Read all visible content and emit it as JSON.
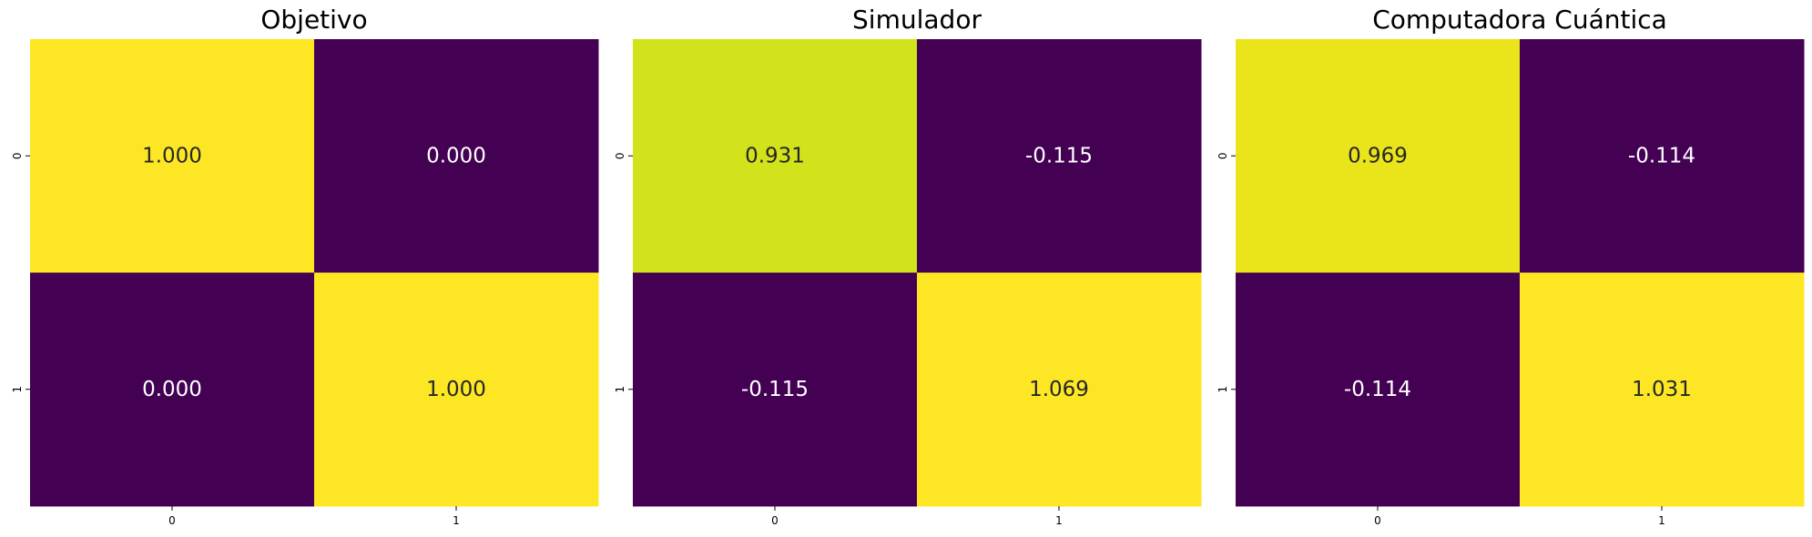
{
  "chart_data": [
    {
      "type": "heatmap",
      "title": "Objetivo",
      "x_tick_labels": [
        "0",
        "1"
      ],
      "y_tick_labels": [
        "0",
        "1"
      ],
      "values": [
        [
          1.0,
          0.0
        ],
        [
          0.0,
          1.0
        ]
      ],
      "cell_labels": [
        [
          "1.000",
          "0.000"
        ],
        [
          "0.000",
          "1.000"
        ]
      ],
      "colors": [
        [
          "#fde725",
          "#440154"
        ],
        [
          "#440154",
          "#fde725"
        ]
      ],
      "colormap": "viridis",
      "colorbar": false
    },
    {
      "type": "heatmap",
      "title": "Simulador",
      "x_tick_labels": [
        "0",
        "1"
      ],
      "y_tick_labels": [
        "0",
        "1"
      ],
      "values": [
        [
          0.931,
          -0.115
        ],
        [
          -0.115,
          1.069
        ]
      ],
      "cell_labels": [
        [
          "0.931",
          "-0.115"
        ],
        [
          "-0.115",
          "1.069"
        ]
      ],
      "colors": [
        [
          "#d2e21b",
          "#440154"
        ],
        [
          "#440154",
          "#fde725"
        ]
      ],
      "colormap": "viridis",
      "colorbar": false
    },
    {
      "type": "heatmap",
      "title": "Computadora Cuántica",
      "x_tick_labels": [
        "0",
        "1"
      ],
      "y_tick_labels": [
        "0",
        "1"
      ],
      "values": [
        [
          0.969,
          -0.114
        ],
        [
          -0.114,
          1.031
        ]
      ],
      "cell_labels": [
        [
          "0.969",
          "-0.114"
        ],
        [
          "-0.114",
          "1.031"
        ]
      ],
      "colors": [
        [
          "#eae51a",
          "#440154"
        ],
        [
          "#440154",
          "#fde725"
        ]
      ],
      "colormap": "viridis",
      "colorbar": false
    }
  ],
  "colors": {
    "dark_text": "#262626",
    "light_text": "#ffffff",
    "tick": "#000000"
  }
}
